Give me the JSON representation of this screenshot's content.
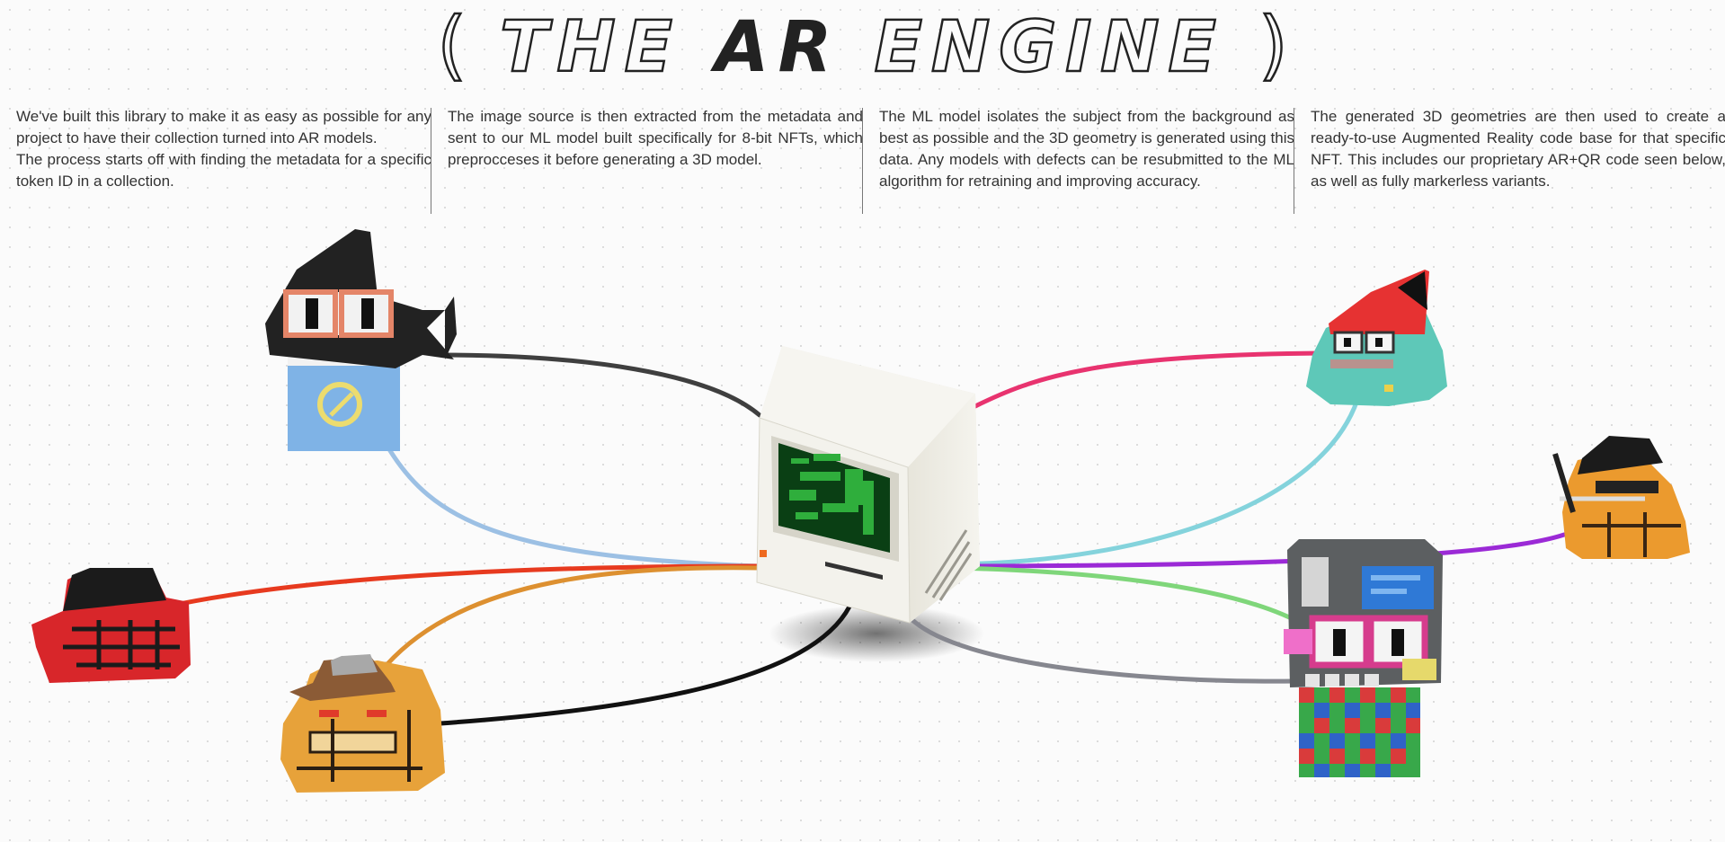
{
  "header": {
    "bracket_open": "(",
    "word1": "THE",
    "word2": "AR",
    "word3": "ENGINE",
    "bracket_close": ")"
  },
  "columns": [
    {
      "p1": "We've built this library to make it as easy as possible for any project to have their collection turned into AR models.",
      "p2": "The process starts off with finding the metadata for a specific token ID in a collection."
    },
    {
      "p1": "The image source is then extracted from the metadata and sent to our ML model built specifically for 8-bit NFTs, which preprocceses it before generating a 3D model."
    },
    {
      "p1": "The ML model isolates the subject from the background as best as possible and the 3D geometry is generated using this data. Any models with defects can be resubmitted to the ML algorithm for retraining and improving accuracy."
    },
    {
      "p1": "The generated 3D geometries are then used to create a ready-to-use Augmented Reality code base for that specific NFT. This includes our proprietary AR+QR code seen below, as well as fully markerless variants."
    }
  ],
  "illustration": {
    "center": "retro-computer",
    "characters": [
      "shark-hat-character",
      "red-hat-skull-character",
      "brown-hat-cat-character",
      "red-cone-frog-character",
      "black-hat-cat-character",
      "robot-checkered-character"
    ],
    "cable_colors": [
      "#3f3f3f",
      "#9cc0e4",
      "#e73a1f",
      "#dd9030",
      "#111111",
      "#e8336f",
      "#84d3dc",
      "#9b2ad6",
      "#7fd67a",
      "#86878f"
    ]
  }
}
